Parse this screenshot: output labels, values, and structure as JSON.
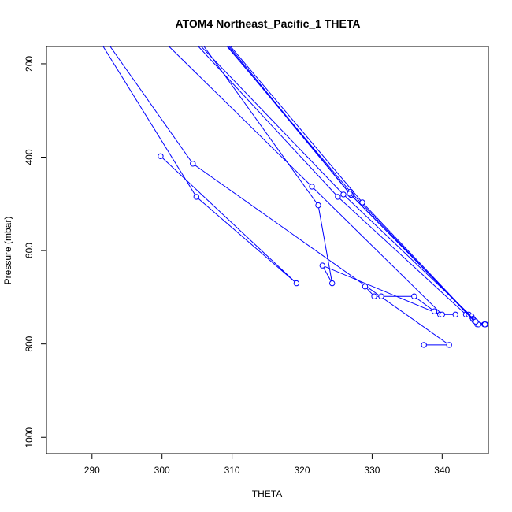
{
  "chart_data": {
    "type": "line",
    "title": "ATOM4 Northeast_Pacific_1 THETA",
    "xlabel": "THETA",
    "ylabel": "Pressure (mbar)",
    "xlim": [
      283.5,
      346.6
    ],
    "ylim": [
      1035,
      163
    ],
    "y_reversed": true,
    "grid": false,
    "line_color": "#0000ff",
    "x_ticks": [
      290,
      300,
      310,
      320,
      330,
      340
    ],
    "y_ticks": [
      200,
      400,
      600,
      800,
      1000
    ],
    "series": [
      {
        "points": [
          [
            292.6,
            163
          ],
          [
            304.4,
            414
          ],
          [
            341.0,
            802
          ],
          [
            337.4,
            802
          ]
        ]
      },
      {
        "points": [
          [
            291.6,
            163
          ],
          [
            304.9,
            485
          ],
          [
            319.2,
            670
          ],
          [
            299.8,
            398
          ]
        ]
      },
      {
        "points": [
          [
            306.0,
            163
          ],
          [
            322.3,
            503
          ],
          [
            324.3,
            670
          ],
          [
            322.9,
            632
          ],
          [
            339.7,
            737
          ],
          [
            338.9,
            730
          ],
          [
            336.0,
            698
          ],
          [
            331.3,
            698
          ],
          [
            330.3,
            698
          ],
          [
            329.0,
            677
          ]
        ]
      },
      {
        "points": [
          [
            301.0,
            163
          ],
          [
            321.4,
            463
          ],
          [
            340.0,
            737
          ],
          [
            341.9,
            737
          ]
        ]
      },
      {
        "points": [
          [
            305.2,
            163
          ],
          [
            325.1,
            485
          ],
          [
            343.4,
            737
          ],
          [
            343.8,
            737
          ]
        ]
      },
      {
        "points": [
          [
            305.6,
            163
          ],
          [
            325.9,
            480
          ],
          [
            344.2,
            741
          ],
          [
            344.4,
            746
          ]
        ]
      },
      {
        "points": [
          [
            309.3,
            163
          ],
          [
            326.9,
            474
          ],
          [
            345.0,
            758
          ],
          [
            346.0,
            758
          ]
        ]
      },
      {
        "points": [
          [
            309.6,
            163
          ],
          [
            327.0,
            481
          ],
          [
            345.2,
            758
          ],
          [
            346.2,
            758
          ]
        ]
      },
      {
        "points": [
          [
            309.8,
            163
          ],
          [
            328.6,
            497
          ],
          [
            344.6,
            750
          ],
          [
            346.1,
            758
          ]
        ]
      },
      {
        "points": [
          [
            309.4,
            163
          ],
          [
            326.8,
            478
          ],
          [
            344.8,
            752
          ]
        ]
      }
    ]
  }
}
